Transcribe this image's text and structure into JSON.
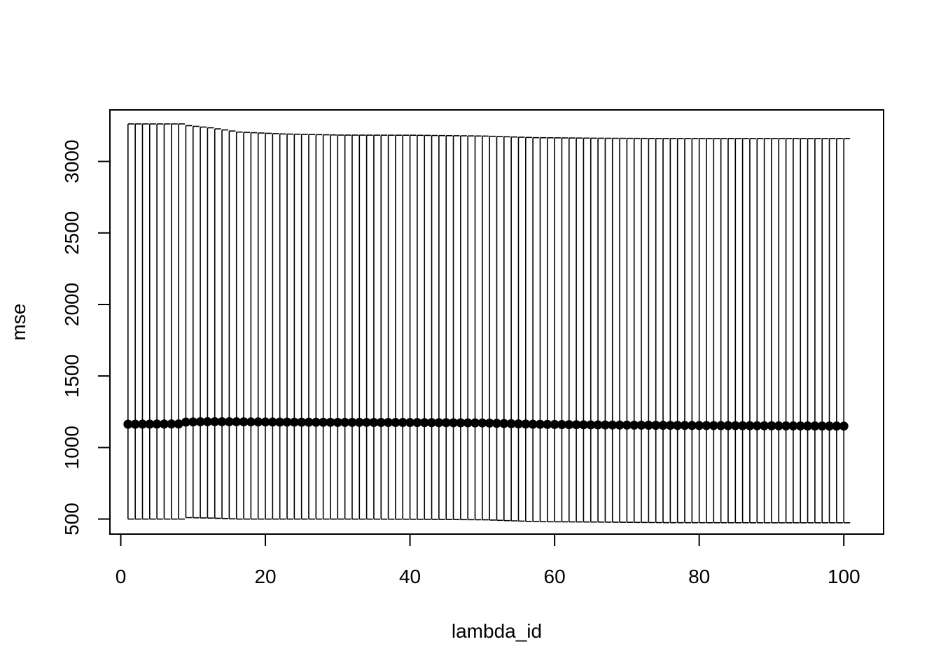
{
  "chart_data": {
    "type": "scatter",
    "title": "",
    "xlabel": "lambda_id",
    "ylabel": "mse",
    "xlim": [
      -1.5,
      105.5
    ],
    "ylim": [
      395,
      3360
    ],
    "xticks": [
      0,
      20,
      40,
      60,
      80,
      100
    ],
    "xtick_labels": [
      "0",
      "20",
      "40",
      "60",
      "80",
      "100"
    ],
    "yticks": [
      500,
      1000,
      1500,
      2000,
      2500,
      3000
    ],
    "ytick_labels": [
      "500",
      "1000",
      "1500",
      "2000",
      "2500",
      "3000"
    ],
    "grid": false,
    "legend": "none",
    "error_bars": true,
    "point_color": "#000000",
    "anchors": [
      {
        "x": 1,
        "y": 1163,
        "low": 500,
        "high": 3262
      },
      {
        "x": 8,
        "y": 1165,
        "low": 500,
        "high": 3262
      },
      {
        "x": 9,
        "y": 1178,
        "low": 510,
        "high": 3250
      },
      {
        "x": 12,
        "y": 1181,
        "low": 507,
        "high": 3235
      },
      {
        "x": 16,
        "y": 1180,
        "low": 500,
        "high": 3205
      },
      {
        "x": 22,
        "y": 1178,
        "low": 500,
        "high": 3192
      },
      {
        "x": 30,
        "y": 1176,
        "low": 500,
        "high": 3184
      },
      {
        "x": 40,
        "y": 1175,
        "low": 499,
        "high": 3183
      },
      {
        "x": 50,
        "y": 1172,
        "low": 495,
        "high": 3177
      },
      {
        "x": 57,
        "y": 1163,
        "low": 482,
        "high": 3166
      },
      {
        "x": 66,
        "y": 1158,
        "low": 479,
        "high": 3162
      },
      {
        "x": 75,
        "y": 1155,
        "low": 475,
        "high": 3160
      },
      {
        "x": 90,
        "y": 1152,
        "low": 474,
        "high": 3160
      },
      {
        "x": 100,
        "y": 1150,
        "low": 474,
        "high": 3160
      }
    ]
  }
}
